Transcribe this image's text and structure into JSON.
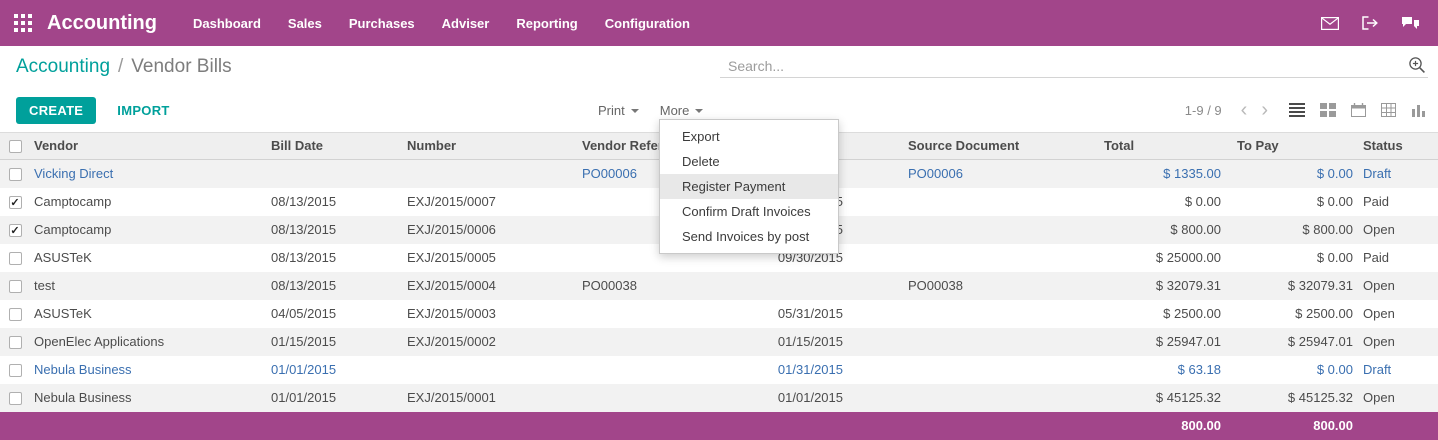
{
  "colors": {
    "topbar_purple": "#a2458a",
    "accent_teal": "#00a09b",
    "draft_blue": "#3a6fb0"
  },
  "topbar": {
    "brand": "Accounting",
    "menus": [
      "Dashboard",
      "Sales",
      "Purchases",
      "Adviser",
      "Reporting",
      "Configuration"
    ],
    "right_icons": [
      "envelope-icon",
      "logout-icon",
      "messages-icon"
    ]
  },
  "breadcrumb": {
    "parent": "Accounting",
    "separator": "/",
    "current": "Vendor Bills"
  },
  "search": {
    "placeholder": "Search...",
    "icon": "magnifier-plus-icon"
  },
  "controls": {
    "create_label": "CREATE",
    "import_label": "IMPORT",
    "print_label": "Print",
    "more_label": "More",
    "pager_text": "1-9 / 9",
    "prev_icon": "‹",
    "next_icon": "›",
    "view_switcher": [
      "list-view-icon",
      "kanban-view-icon",
      "calendar-view-icon",
      "pivot-view-icon",
      "graph-view-icon"
    ],
    "active_view": "list-view-icon"
  },
  "dropdown": {
    "items": [
      "Export",
      "Delete",
      "Register Payment",
      "Confirm Draft Invoices",
      "Send Invoices by post"
    ],
    "highlighted": "Register Payment",
    "highlighted_index": 2
  },
  "table": {
    "headers": [
      "Vendor",
      "Bill Date",
      "Number",
      "Vendor Reference",
      "",
      "Source Document",
      "Total",
      "To Pay",
      "Status"
    ],
    "rows": [
      {
        "checked": false,
        "draft": true,
        "vendor": "Vicking Direct",
        "bill_date": "",
        "number": "",
        "vendor_ref": "PO00006",
        "due_date": "",
        "source": "PO00006",
        "total": "$ 1335.00",
        "to_pay": "$ 0.00",
        "status": "Draft"
      },
      {
        "checked": true,
        "draft": false,
        "vendor": "Camptocamp",
        "bill_date": "08/13/2015",
        "number": "EXJ/2015/0007",
        "vendor_ref": "",
        "due_date": "5",
        "source": "",
        "total": "$ 0.00",
        "to_pay": "$ 0.00",
        "status": "Paid"
      },
      {
        "checked": true,
        "draft": false,
        "vendor": "Camptocamp",
        "bill_date": "08/13/2015",
        "number": "EXJ/2015/0006",
        "vendor_ref": "",
        "due_date": "5",
        "source": "",
        "total": "$ 800.00",
        "to_pay": "$ 800.00",
        "status": "Open"
      },
      {
        "checked": false,
        "draft": false,
        "vendor": "ASUSTeK",
        "bill_date": "08/13/2015",
        "number": "EXJ/2015/0005",
        "vendor_ref": "",
        "due_date": "09/30/2015",
        "source": "",
        "total": "$ 25000.00",
        "to_pay": "$ 0.00",
        "status": "Paid"
      },
      {
        "checked": false,
        "draft": false,
        "vendor": "test",
        "bill_date": "08/13/2015",
        "number": "EXJ/2015/0004",
        "vendor_ref": "PO00038",
        "due_date": "",
        "source": "PO00038",
        "total": "$ 32079.31",
        "to_pay": "$ 32079.31",
        "status": "Open"
      },
      {
        "checked": false,
        "draft": false,
        "vendor": "ASUSTeK",
        "bill_date": "04/05/2015",
        "number": "EXJ/2015/0003",
        "vendor_ref": "",
        "due_date": "05/31/2015",
        "source": "",
        "total": "$ 2500.00",
        "to_pay": "$ 2500.00",
        "status": "Open"
      },
      {
        "checked": false,
        "draft": false,
        "vendor": "OpenElec Applications",
        "bill_date": "01/15/2015",
        "number": "EXJ/2015/0002",
        "vendor_ref": "",
        "due_date": "01/15/2015",
        "source": "",
        "total": "$ 25947.01",
        "to_pay": "$ 25947.01",
        "status": "Open"
      },
      {
        "checked": false,
        "draft": true,
        "vendor": "Nebula Business",
        "bill_date": "01/01/2015",
        "number": "",
        "vendor_ref": "",
        "due_date": "01/31/2015",
        "source": "",
        "total": "$ 63.18",
        "to_pay": "$ 0.00",
        "status": "Draft"
      },
      {
        "checked": false,
        "draft": false,
        "vendor": "Nebula Business",
        "bill_date": "01/01/2015",
        "number": "EXJ/2015/0001",
        "vendor_ref": "",
        "due_date": "01/01/2015",
        "source": "",
        "total": "$ 45125.32",
        "to_pay": "$ 45125.32",
        "status": "Open"
      }
    ],
    "footer": {
      "total": "800.00",
      "to_pay": "800.00"
    }
  }
}
